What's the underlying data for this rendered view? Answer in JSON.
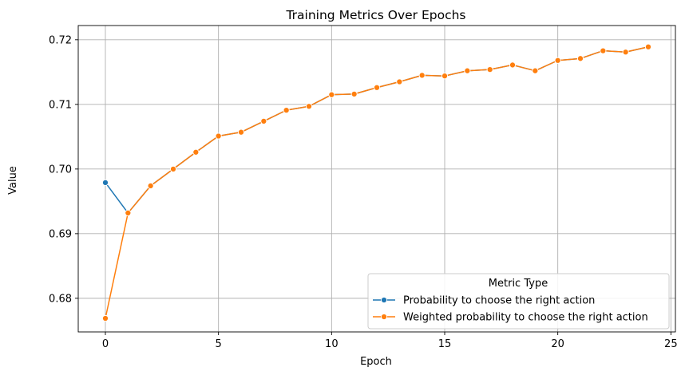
{
  "chart_data": {
    "type": "line",
    "title": "Training Metrics Over Epochs",
    "xlabel": "Epoch",
    "ylabel": "Value",
    "xlim": [
      -1.2,
      25.2
    ],
    "ylim": [
      0.6748,
      0.7222
    ],
    "xticks": [
      0,
      5,
      10,
      15,
      20,
      25
    ],
    "yticks": [
      0.68,
      0.69,
      0.7,
      0.71,
      0.72
    ],
    "ytick_labels": [
      "0.68",
      "0.69",
      "0.70",
      "0.71",
      "0.72"
    ],
    "grid": true,
    "legend": {
      "title": "Metric Type",
      "placement": "lower-right"
    },
    "x": [
      0,
      1,
      2,
      3,
      4,
      5,
      6,
      7,
      8,
      9,
      10,
      11,
      12,
      13,
      14,
      15,
      16,
      17,
      18,
      19,
      20,
      21,
      22,
      23,
      24
    ],
    "series": [
      {
        "name": "Probability to choose the right action",
        "color": "#1f77b4",
        "values": [
          0.6979,
          0.6932,
          0.6974,
          0.7,
          0.7026,
          0.7051,
          0.7057,
          0.7074,
          0.7091,
          0.7097,
          0.7115,
          0.7116,
          0.7126,
          0.7135,
          0.7145,
          0.7144,
          0.7152,
          0.7154,
          0.7161,
          0.7152,
          0.7168,
          0.7171,
          0.7183,
          0.7181,
          0.7189
        ]
      },
      {
        "name": "Weighted probability to choose the right action",
        "color": "#ff7f0e",
        "values": [
          0.6769,
          0.6932,
          0.6974,
          0.7,
          0.7026,
          0.7051,
          0.7057,
          0.7074,
          0.7091,
          0.7097,
          0.7115,
          0.7116,
          0.7126,
          0.7135,
          0.7145,
          0.7144,
          0.7152,
          0.7154,
          0.7161,
          0.7152,
          0.7168,
          0.7171,
          0.7183,
          0.7181,
          0.7189
        ]
      }
    ]
  }
}
